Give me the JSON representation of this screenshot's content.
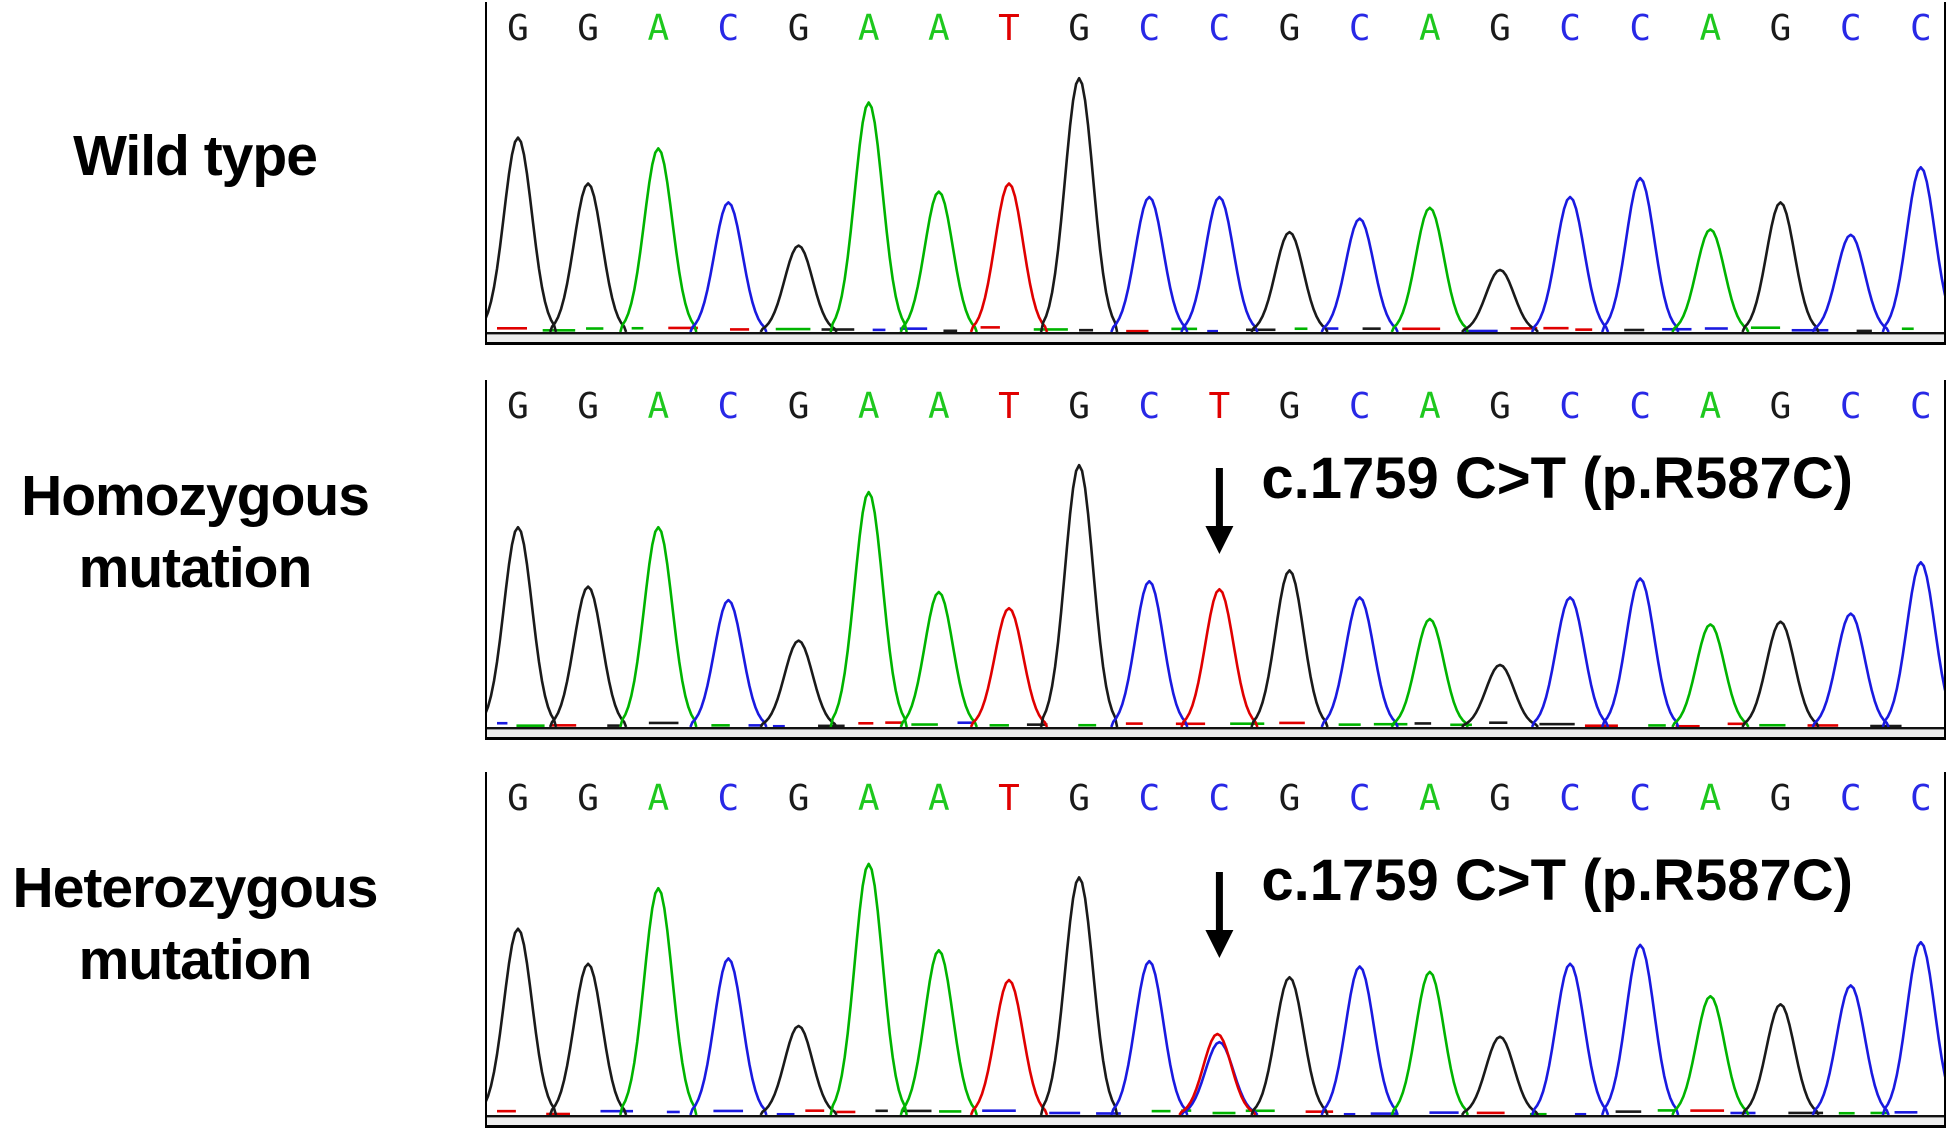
{
  "colors": {
    "trace": {
      "G": "#1a1a1a",
      "A": "#00b400",
      "C": "#1a1ae0",
      "T": "#e00000"
    },
    "letters": {
      "G": "#1a1a1a",
      "A": "#1ec81e",
      "C": "#2828e6",
      "T": "#e00000"
    },
    "noise": [
      "#e00000",
      "#00b400",
      "#1a1ae0",
      "#1a1a1a"
    ],
    "annotation_text": "#000000",
    "arrow": "#000000"
  },
  "chart_data": {
    "type": "line",
    "subtype": "sanger-sequencing-chromatogram",
    "panels": [
      {
        "label": "Wild type",
        "sequence": "GGACGAATGCCGCAGCCAGCC",
        "peaks": [
          {
            "base": "G",
            "h": 0.72
          },
          {
            "base": "G",
            "h": 0.55
          },
          {
            "base": "A",
            "h": 0.68
          },
          {
            "base": "C",
            "h": 0.48
          },
          {
            "base": "G",
            "h": 0.32
          },
          {
            "base": "A",
            "h": 0.85
          },
          {
            "base": "A",
            "h": 0.52
          },
          {
            "base": "T",
            "h": 0.55
          },
          {
            "base": "G",
            "h": 0.94
          },
          {
            "base": "C",
            "h": 0.5
          },
          {
            "base": "C",
            "h": 0.5
          },
          {
            "base": "G",
            "h": 0.37
          },
          {
            "base": "C",
            "h": 0.42
          },
          {
            "base": "A",
            "h": 0.46
          },
          {
            "base": "G",
            "h": 0.23
          },
          {
            "base": "C",
            "h": 0.5
          },
          {
            "base": "C",
            "h": 0.57
          },
          {
            "base": "A",
            "h": 0.38
          },
          {
            "base": "G",
            "h": 0.48
          },
          {
            "base": "C",
            "h": 0.36
          },
          {
            "base": "C",
            "h": 0.61
          }
        ],
        "mutation": null
      },
      {
        "label": "Homozygous\nmutation",
        "sequence": "GGACGAATGCTGCAGCCAGCC",
        "peaks": [
          {
            "base": "G",
            "h": 0.74
          },
          {
            "base": "G",
            "h": 0.52
          },
          {
            "base": "A",
            "h": 0.74
          },
          {
            "base": "C",
            "h": 0.47
          },
          {
            "base": "G",
            "h": 0.32
          },
          {
            "base": "A",
            "h": 0.87
          },
          {
            "base": "A",
            "h": 0.5
          },
          {
            "base": "T",
            "h": 0.44
          },
          {
            "base": "G",
            "h": 0.97
          },
          {
            "base": "C",
            "h": 0.54
          },
          {
            "base": "T",
            "h": 0.51
          },
          {
            "base": "G",
            "h": 0.58
          },
          {
            "base": "C",
            "h": 0.48
          },
          {
            "base": "A",
            "h": 0.4
          },
          {
            "base": "G",
            "h": 0.23
          },
          {
            "base": "C",
            "h": 0.48
          },
          {
            "base": "C",
            "h": 0.55
          },
          {
            "base": "A",
            "h": 0.38
          },
          {
            "base": "G",
            "h": 0.39
          },
          {
            "base": "C",
            "h": 0.42
          },
          {
            "base": "C",
            "h": 0.61
          }
        ],
        "mutation": {
          "index": 10,
          "annotation": "c.1759 C>T (p.R587C)"
        }
      },
      {
        "label": "Heterozygous\nmutation",
        "sequence": "GGACGAATGCCGCAGCCAGCC",
        "peaks": [
          {
            "base": "G",
            "h": 0.69
          },
          {
            "base": "G",
            "h": 0.56
          },
          {
            "base": "A",
            "h": 0.84
          },
          {
            "base": "C",
            "h": 0.58
          },
          {
            "base": "G",
            "h": 0.33
          },
          {
            "base": "A",
            "h": 0.93
          },
          {
            "base": "A",
            "h": 0.61
          },
          {
            "base": "T",
            "h": 0.5
          },
          {
            "base": "G",
            "h": 0.88
          },
          {
            "base": "C",
            "h": 0.57
          },
          {
            "base": "C",
            "h": 0.27,
            "overlay": {
              "base": "T",
              "h": 0.3
            }
          },
          {
            "base": "G",
            "h": 0.51
          },
          {
            "base": "C",
            "h": 0.55
          },
          {
            "base": "A",
            "h": 0.53
          },
          {
            "base": "G",
            "h": 0.29
          },
          {
            "base": "C",
            "h": 0.56
          },
          {
            "base": "C",
            "h": 0.63
          },
          {
            "base": "A",
            "h": 0.44
          },
          {
            "base": "G",
            "h": 0.41
          },
          {
            "base": "C",
            "h": 0.48
          },
          {
            "base": "C",
            "h": 0.64
          }
        ],
        "mutation": {
          "index": 10,
          "annotation": "c.1759 C>T (p.R587C)"
        }
      }
    ]
  }
}
